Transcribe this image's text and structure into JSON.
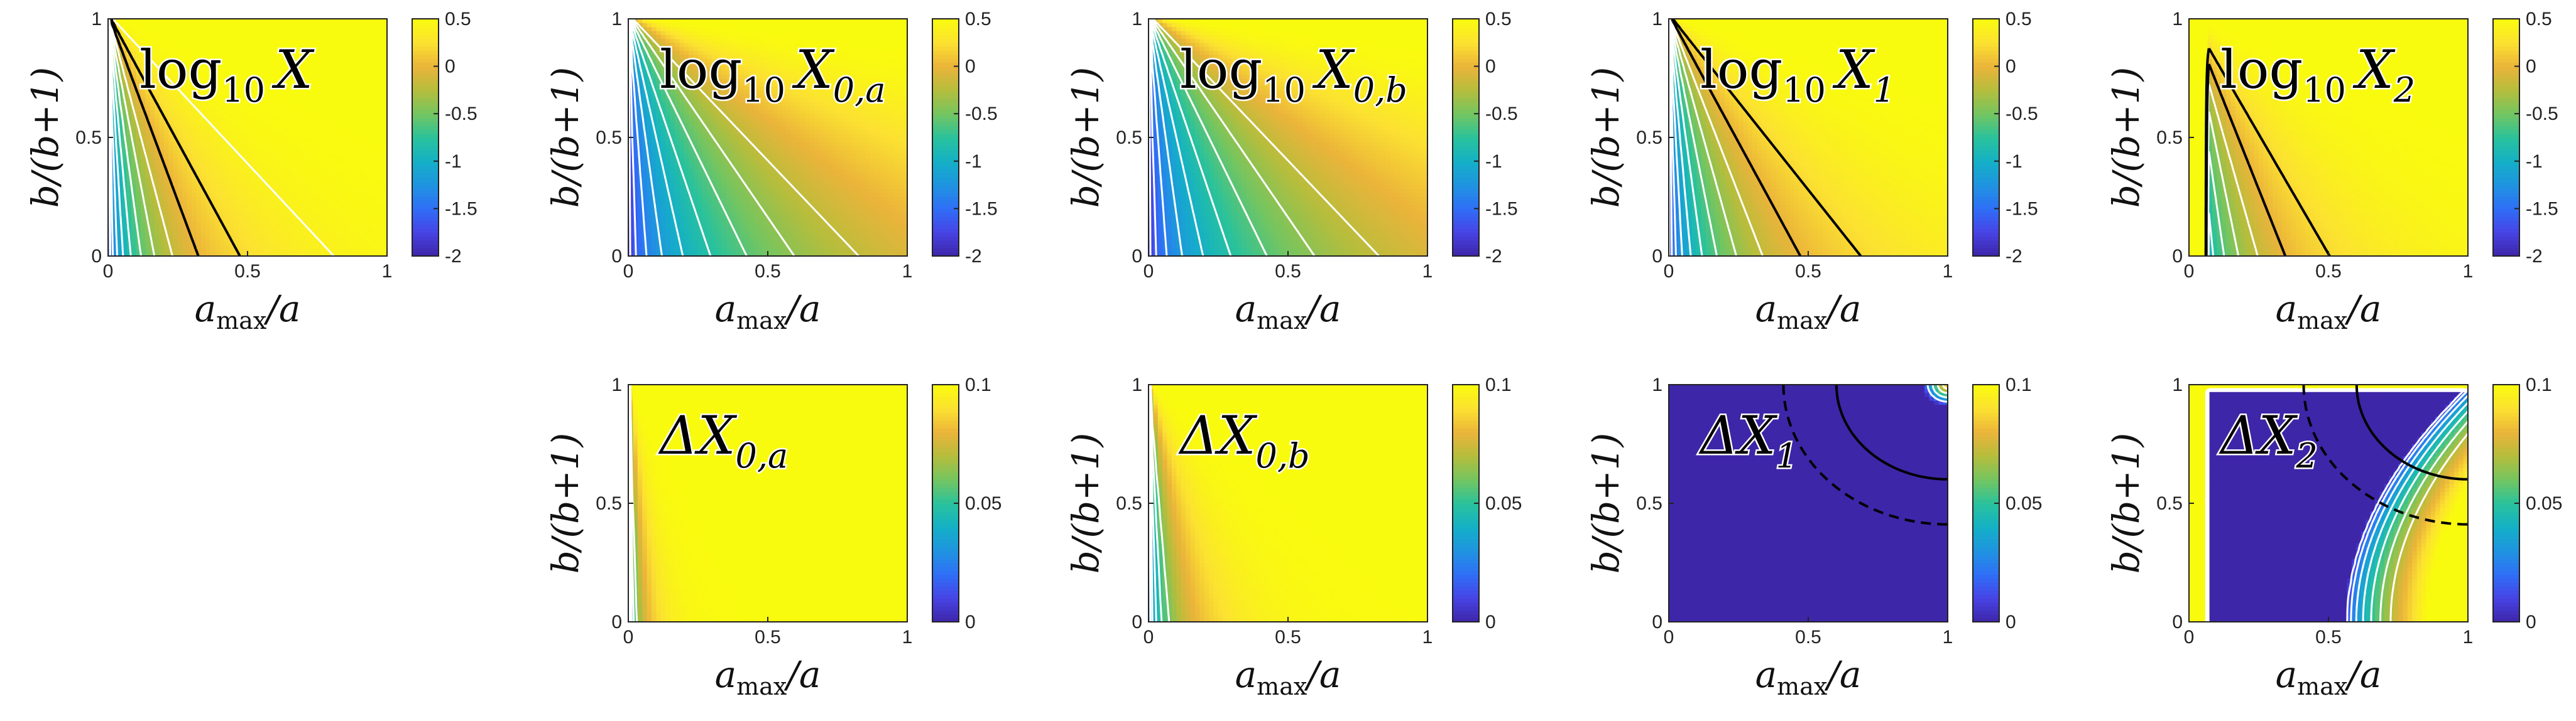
{
  "figure": {
    "colormap": [
      "#3e26a8",
      "#4743e4",
      "#2f6ff7",
      "#1f94e0",
      "#14b0c6",
      "#2ac29b",
      "#74c560",
      "#b6bd3c",
      "#ebb43a",
      "#fce231",
      "#f9fb0e"
    ],
    "contour_line_color": "#ffffff",
    "special_contour_color": "#000000"
  },
  "chart_data": [
    {
      "id": "log10_X",
      "type": "heatmap",
      "title": "log₁₀ X",
      "title_main": "log",
      "title_sub1": "10",
      "title_var": "X",
      "title_sub2": "",
      "xlabel": "a_max/a",
      "ylabel": "b/(b+1)",
      "xlim": [
        0,
        1
      ],
      "ylim": [
        0,
        1
      ],
      "xticks": [
        "0",
        "0.5",
        "1"
      ],
      "yticks": [
        "0",
        "0.5",
        "1"
      ],
      "clim": [
        -2,
        0.5
      ],
      "cbar_ticks": [
        "0.5",
        "0",
        "-0.5",
        "-1",
        "-1.5",
        "-2"
      ],
      "model": "rational",
      "amp": 3.2,
      "contour_levels": [
        -1.9,
        -1.8,
        -1.6,
        -1.4,
        -1.2,
        -1.0,
        -0.8,
        -0.6,
        -0.4,
        -0.2,
        0.0,
        0.2,
        0.4
      ],
      "special_contours": [
        {
          "level": 0.0,
          "style": "dashed"
        },
        {
          "level": 0.2,
          "style": "solid"
        }
      ]
    },
    {
      "id": "log10_X0a",
      "type": "heatmap",
      "title": "log₁₀ X₀,ₐ",
      "title_main": "log",
      "title_sub1": "10",
      "title_var": "X",
      "title_sub2": "0,a",
      "xlabel": "a_max/a",
      "ylabel": "b/(b+1)",
      "xlim": [
        0,
        1
      ],
      "ylim": [
        0,
        1
      ],
      "xticks": [
        "0",
        "0.5",
        "1"
      ],
      "yticks": [
        "0",
        "0.5",
        "1"
      ],
      "clim": [
        -2,
        0.5
      ],
      "cbar_ticks": [
        "0.5",
        "0",
        "-0.5",
        "-1",
        "-1.5",
        "-2"
      ],
      "model": "rational",
      "amp": 0.9,
      "contour_levels": [
        -1.9,
        -1.8,
        -1.6,
        -1.4,
        -1.2,
        -1.0,
        -0.8,
        -0.6,
        -0.4,
        -0.2
      ],
      "special_contours": []
    },
    {
      "id": "log10_X0b",
      "type": "heatmap",
      "title": "log₁₀ X₀,ᵦ",
      "title_main": "log",
      "title_sub1": "10",
      "title_var": "X",
      "title_sub2": "0,b",
      "xlabel": "a_max/a",
      "ylabel": "b/(b+1)",
      "xlim": [
        0,
        1
      ],
      "ylim": [
        0,
        1
      ],
      "xticks": [
        "0",
        "0.5",
        "1"
      ],
      "yticks": [
        "0",
        "0.5",
        "1"
      ],
      "clim": [
        -2,
        0.5
      ],
      "cbar_ticks": [
        "0.5",
        "0",
        "-0.5",
        "-1",
        "-1.5",
        "-2"
      ],
      "model": "rational",
      "amp": 0.9,
      "contour_levels": [
        -1.9,
        -1.8,
        -1.6,
        -1.4,
        -1.2,
        -1.0,
        -0.8,
        -0.6,
        -0.4,
        -0.2
      ],
      "special_contours": []
    },
    {
      "id": "log10_X1",
      "type": "heatmap",
      "title": "log₁₀ X₁",
      "title_main": "log",
      "title_sub1": "10",
      "title_var": "X",
      "title_sub2": "1",
      "xlabel": "a_max/a",
      "ylabel": "b/(b+1)",
      "xlim": [
        0,
        1
      ],
      "ylim": [
        0,
        1
      ],
      "xticks": [
        "0",
        "0.5",
        "1"
      ],
      "yticks": [
        "0",
        "0.5",
        "1"
      ],
      "clim": [
        -2,
        0.5
      ],
      "cbar_ticks": [
        "0.5",
        "0",
        "-0.5",
        "-1",
        "-1.5",
        "-2"
      ],
      "model": "rational",
      "amp": 2.2,
      "contour_levels": [
        -1.9,
        -1.8,
        -1.6,
        -1.4,
        -1.2,
        -1.0,
        -0.8,
        -0.6,
        -0.4,
        -0.2,
        0.0,
        0.2
      ],
      "special_contours": [
        {
          "level": 0.0,
          "style": "dashed"
        },
        {
          "level": 0.2,
          "style": "solid"
        }
      ]
    },
    {
      "id": "log10_X2",
      "type": "heatmap",
      "title": "log₁₀ X₂",
      "title_main": "log",
      "title_sub1": "10",
      "title_var": "X",
      "title_sub2": "2",
      "xlabel": "a_max/a",
      "ylabel": "b/(b+1)",
      "xlim": [
        0,
        1
      ],
      "ylim": [
        0,
        1
      ],
      "xticks": [
        "0",
        "0.5",
        "1"
      ],
      "yticks": [
        "0",
        "0.5",
        "1"
      ],
      "clim": [
        -2,
        0.5
      ],
      "cbar_ticks": [
        "0.5",
        "0",
        "-0.5",
        "-1",
        "-1.5",
        "-2"
      ],
      "model": "rational_edge",
      "amp": 3.0,
      "edge_x": 0.06,
      "contour_levels": [
        -1.9,
        -1.8,
        -1.6,
        -1.4,
        -1.2,
        -1.0,
        -0.8,
        -0.6,
        -0.4,
        -0.2,
        0.0,
        0.2
      ],
      "special_contours": [
        {
          "level": 0.0,
          "style": "dashed"
        },
        {
          "level": 0.2,
          "style": "solid"
        }
      ]
    },
    {
      "id": "dX0a",
      "type": "heatmap",
      "title": "ΔX₀,ₐ",
      "title_main": "",
      "title_sub1": "",
      "title_var": "ΔX",
      "title_sub2": "0,a",
      "xlabel": "a_max/a",
      "ylabel": "b/(b+1)",
      "xlim": [
        0,
        1
      ],
      "ylim": [
        0,
        1
      ],
      "xticks": [
        "0",
        "0.5",
        "1"
      ],
      "yticks": [
        "0",
        "0.5",
        "1"
      ],
      "clim": [
        0,
        0.1
      ],
      "cbar_ticks": [
        "0.1",
        "0.05",
        "0"
      ],
      "model": "rational",
      "amp": 14,
      "contour_levels": [
        0.01,
        0.02,
        0.03,
        0.04,
        0.05,
        0.06,
        0.1
      ],
      "special_contours": []
    },
    {
      "id": "dX0b",
      "type": "heatmap",
      "title": "ΔX₀,ᵦ",
      "title_main": "",
      "title_sub1": "",
      "title_var": "ΔX",
      "title_sub2": "0,b",
      "xlabel": "a_max/a",
      "ylabel": "b/(b+1)",
      "xlim": [
        0,
        1
      ],
      "ylim": [
        0,
        1
      ],
      "xticks": [
        "0",
        "0.5",
        "1"
      ],
      "yticks": [
        "0",
        "0.5",
        "1"
      ],
      "clim": [
        0,
        0.1
      ],
      "cbar_ticks": [
        "0.1",
        "0.05",
        "0"
      ],
      "model": "rational",
      "amp": 6,
      "contour_levels": [
        0.01,
        0.02,
        0.03,
        0.04,
        0.05,
        0.06,
        0.1
      ],
      "special_contours": []
    },
    {
      "id": "dX1",
      "type": "heatmap",
      "title": "ΔX₁",
      "title_main": "",
      "title_sub1": "",
      "title_var": "ΔX",
      "title_sub2": "1",
      "xlabel": "a_max/a",
      "ylabel": "b/(b+1)",
      "xlim": [
        0,
        1
      ],
      "ylim": [
        0,
        1
      ],
      "xticks": [
        "0",
        "0.5",
        "1"
      ],
      "yticks": [
        "0",
        "0.5",
        "1"
      ],
      "clim": [
        0,
        0.1
      ],
      "cbar_ticks": [
        "0.1",
        "0.05",
        "0"
      ],
      "model": "corner",
      "contour_levels": [
        0.02,
        0.04,
        0.06,
        0.08
      ],
      "special_contours": [
        {
          "level": 0.0,
          "style": "dashed",
          "model_override": "arc_dashed"
        },
        {
          "level": 0.0,
          "style": "solid",
          "model_override": "arc_solid"
        }
      ]
    },
    {
      "id": "dX2",
      "type": "heatmap",
      "title": "ΔX₂",
      "title_main": "",
      "title_sub1": "",
      "title_var": "ΔX",
      "title_sub2": "2",
      "xlabel": "a_max/a",
      "ylabel": "b/(b+1)",
      "xlim": [
        0,
        1
      ],
      "ylim": [
        0,
        1
      ],
      "xticks": [
        "0",
        "0.5",
        "1"
      ],
      "yticks": [
        "0",
        "0.5",
        "1"
      ],
      "clim": [
        0,
        0.1
      ],
      "cbar_ticks": [
        "0.1",
        "0.05",
        "0"
      ],
      "model": "right_edge",
      "edge_x": 0.06,
      "contour_levels": [
        0.01,
        0.02,
        0.03,
        0.04,
        0.05,
        0.06,
        0.07
      ],
      "special_contours": [
        {
          "level": 0.0,
          "style": "dashed",
          "model_override": "arc_dashed"
        },
        {
          "level": 0.0,
          "style": "solid",
          "model_override": "arc_solid"
        }
      ]
    }
  ]
}
